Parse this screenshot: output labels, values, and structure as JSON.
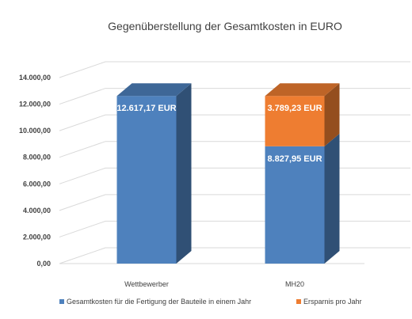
{
  "chart_data": {
    "type": "bar",
    "stacked": true,
    "three_d": true,
    "title": "Gegenüberstellung der Gesamtkosten in EURO",
    "categories": [
      "Wettbewerber",
      "MH20"
    ],
    "series": [
      {
        "name": "Gesamtkosten für die Fertigung der Bauteile in einem Jahr",
        "color": "#4e81bd",
        "values": [
          12617.17,
          8827.95
        ],
        "labels": [
          "12.617,17 EUR",
          "8.827,95 EUR"
        ]
      },
      {
        "name": "Ersparnis pro Jahr",
        "color": "#ee7d31",
        "values": [
          0,
          3789.23
        ],
        "labels": [
          "",
          "3.789,23 EUR"
        ]
      }
    ],
    "ylim": [
      0,
      14000
    ],
    "yticks": [
      0,
      2000,
      4000,
      6000,
      8000,
      10000,
      12000,
      14000
    ],
    "ytick_labels": [
      "0,00",
      "2.000,00",
      "4.000,00",
      "6.000,00",
      "8.000,00",
      "10.000,00",
      "12.000,00",
      "14.000,00"
    ],
    "grid": true,
    "legend_position": "bottom"
  }
}
